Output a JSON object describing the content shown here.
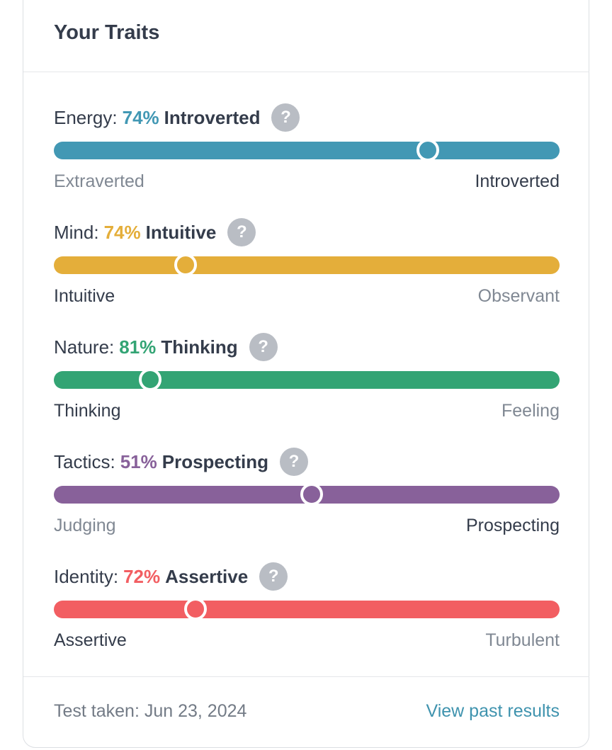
{
  "header": {
    "title": "Your Traits"
  },
  "traits": [
    {
      "name": "Energy:",
      "percent": 74,
      "percent_label": "74%",
      "trait": "Introverted",
      "left": "Extraverted",
      "right": "Introverted",
      "color": "#4298b4"
    },
    {
      "name": "Mind:",
      "percent": 74,
      "percent_label": "74%",
      "trait": "Intuitive",
      "left": "Intuitive",
      "right": "Observant",
      "color": "#e4ae3a"
    },
    {
      "name": "Nature:",
      "percent": 81,
      "percent_label": "81%",
      "trait": "Thinking",
      "left": "Thinking",
      "right": "Feeling",
      "color": "#33a474"
    },
    {
      "name": "Tactics:",
      "percent": 51,
      "percent_label": "51%",
      "trait": "Prospecting",
      "left": "Judging",
      "right": "Prospecting",
      "color": "#88619a"
    },
    {
      "name": "Identity:",
      "percent": 72,
      "percent_label": "72%",
      "trait": "Assertive",
      "left": "Assertive",
      "right": "Turbulent",
      "color": "#f25e62"
    }
  ],
  "help_icon": "?",
  "footer": {
    "date": "Test taken: Jun 23, 2024",
    "link": "View past results"
  }
}
